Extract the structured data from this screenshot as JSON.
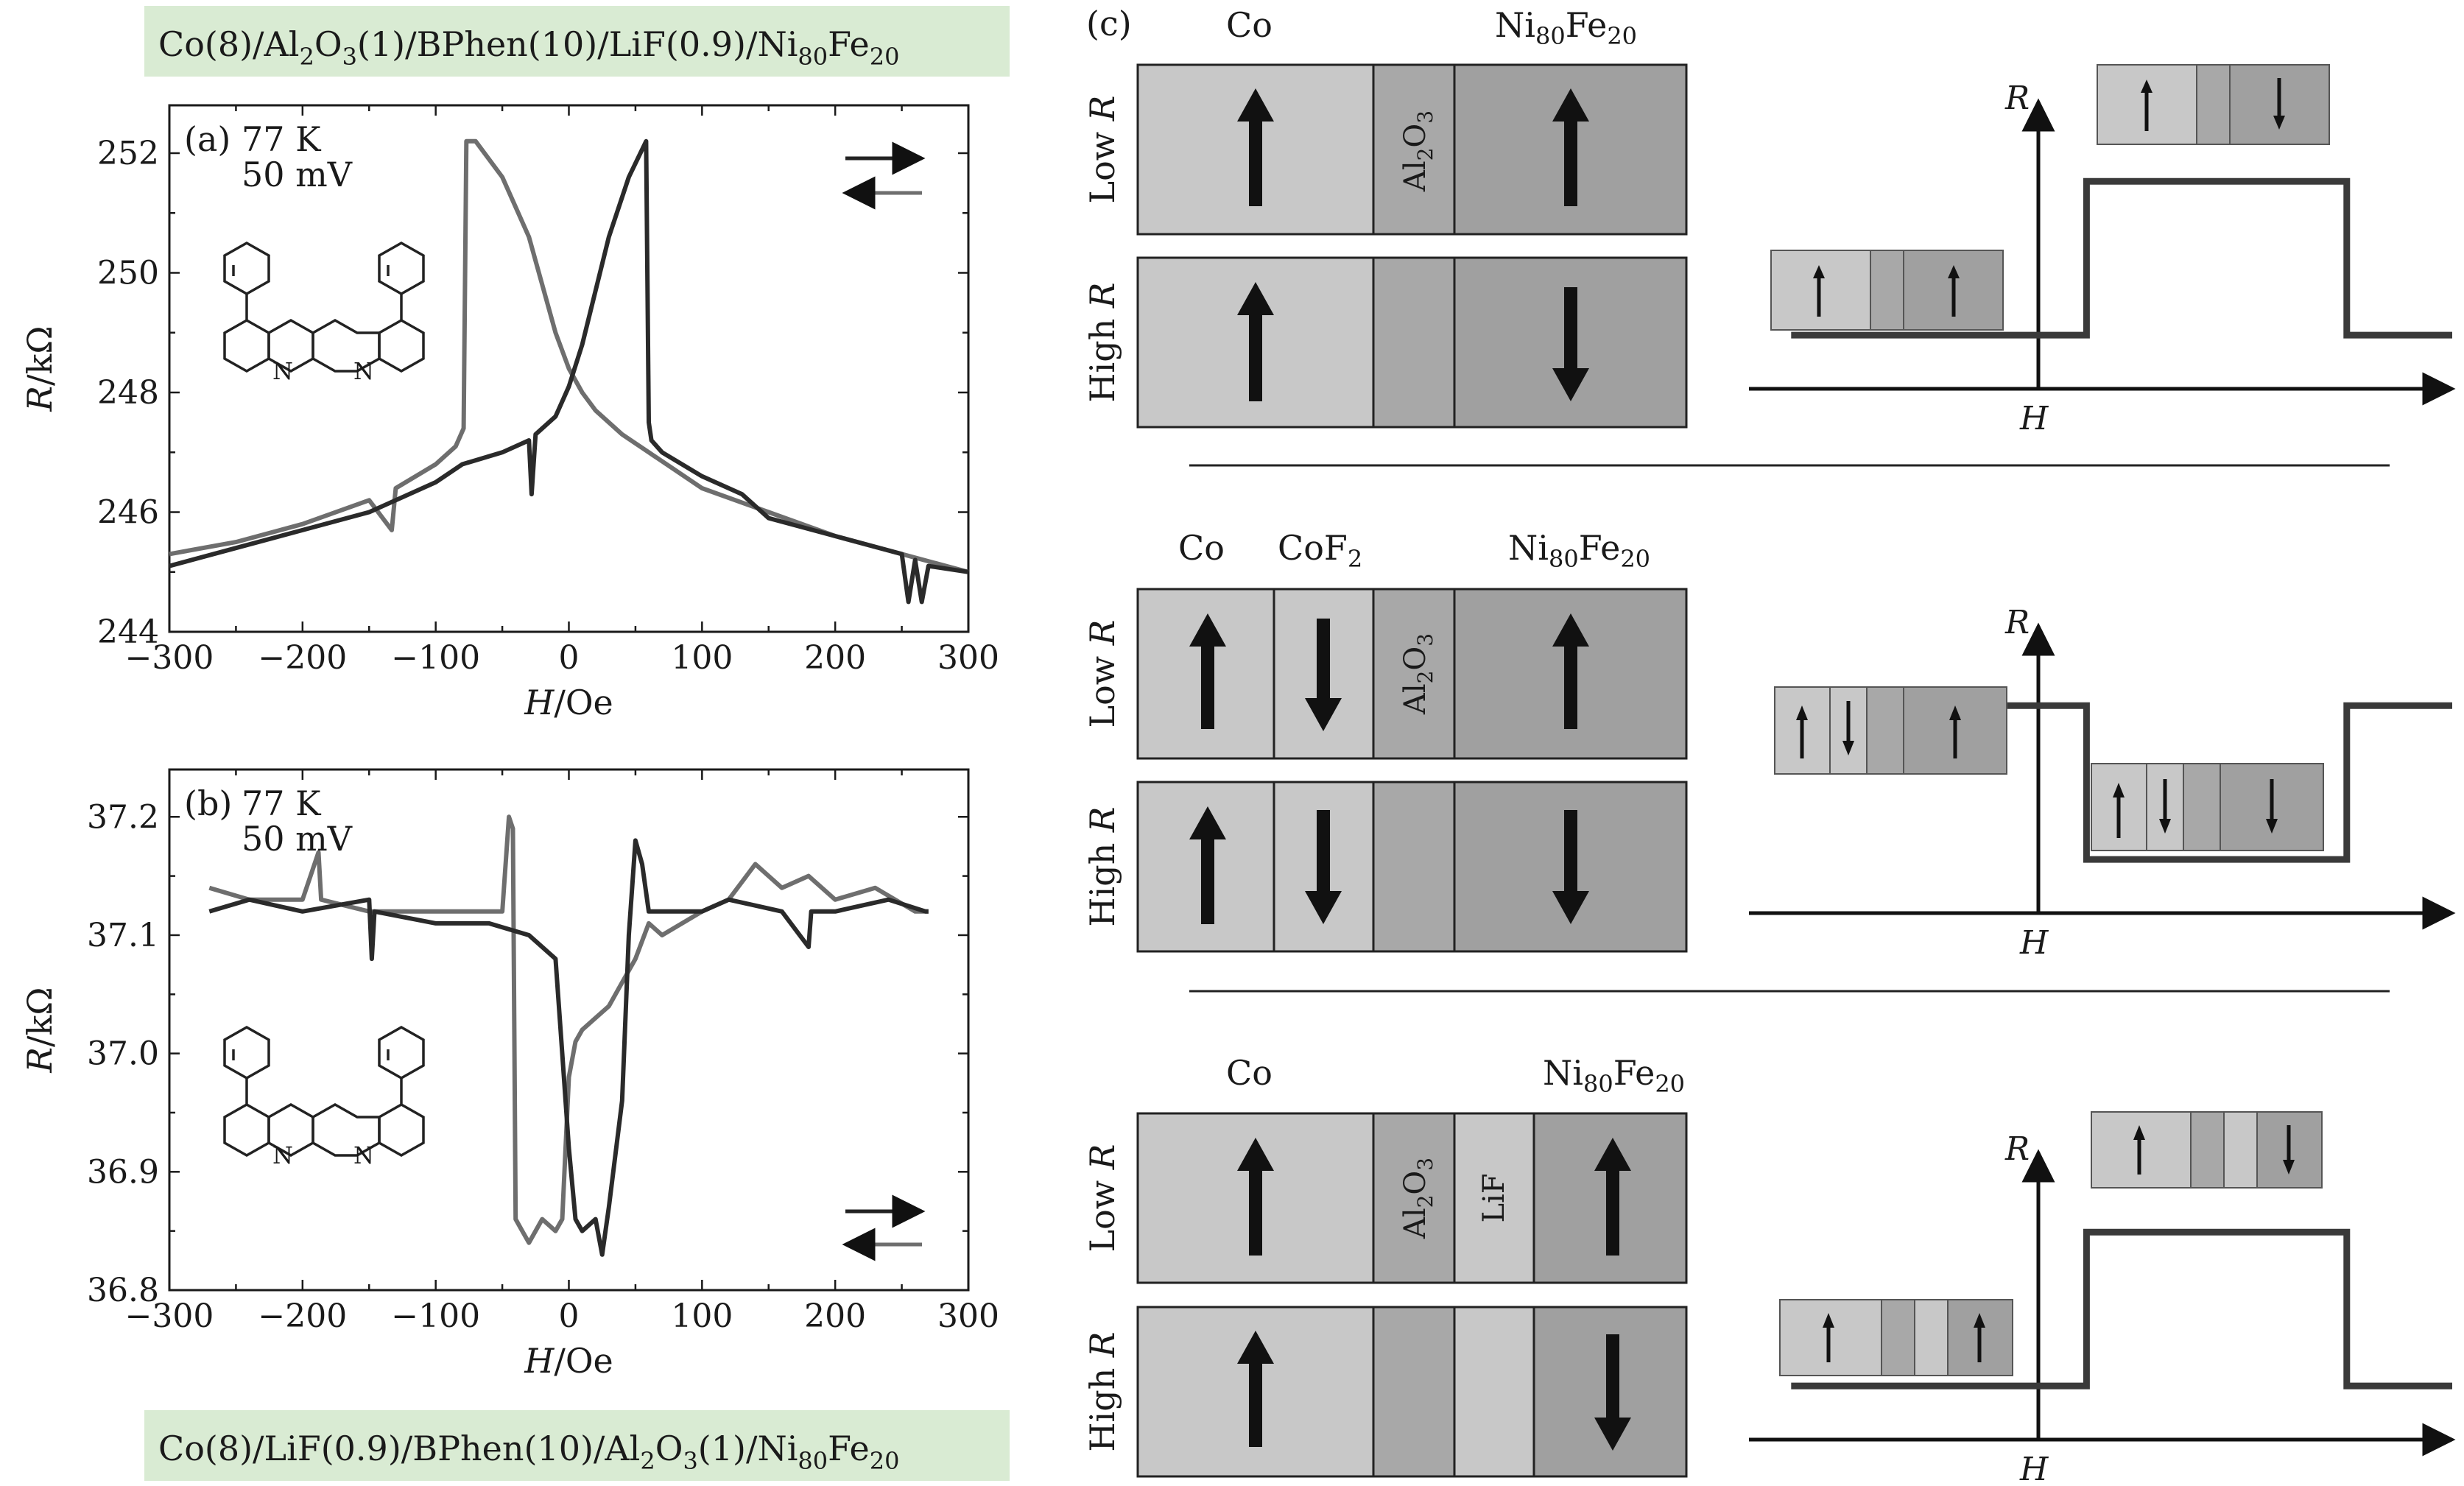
{
  "top_formula_label": {
    "base": "Co(8)/Al",
    "parts": [
      "Co(8)/Al",
      "2",
      "O",
      "3",
      "(1)/BPhen(10)/LiF(0.9)/Ni",
      "80",
      "Fe",
      "20"
    ]
  },
  "bottom_formula_label": {
    "parts": [
      "Co(8)/LiF(0.9)/BPhen(10)/Al",
      "2",
      "O",
      "3",
      "(1)/Ni",
      "80",
      "Fe",
      "20"
    ]
  },
  "panel_c_label": "(c)",
  "chart_data": [
    {
      "type": "line",
      "panel": "(a)",
      "annotation": [
        "77 K",
        "50 mV"
      ],
      "xlabel": "H/Oe",
      "ylabel": "R/kΩ",
      "xlim": [
        -300,
        300
      ],
      "ylim": [
        244,
        252.8
      ],
      "xticks": [
        -300,
        -200,
        -100,
        0,
        100,
        200,
        300
      ],
      "xtick_labels": [
        "−300",
        "−200",
        "−100",
        "0",
        "100",
        "200",
        "300"
      ],
      "yticks": [
        244,
        246,
        248,
        250,
        252
      ],
      "ytick_labels": [
        "244",
        "246",
        "248",
        "250",
        "252"
      ],
      "colors": {
        "gray": "#6e6e6e",
        "dark": "#2a2a2a"
      },
      "series": [
        {
          "color_key": "gray",
          "x": [
            -300,
            -250,
            -200,
            -150,
            -133,
            -130,
            -100,
            -85,
            -79,
            -77,
            -70,
            -50,
            -30,
            -10,
            0,
            10,
            20,
            40,
            60,
            80,
            100,
            150,
            200,
            250,
            300
          ],
          "y": [
            245.3,
            245.5,
            245.8,
            246.2,
            245.7,
            246.4,
            246.8,
            247.1,
            247.4,
            252.2,
            252.2,
            251.6,
            250.6,
            249.0,
            248.4,
            248.0,
            247.7,
            247.3,
            247.0,
            246.7,
            246.4,
            246.0,
            245.6,
            245.3,
            245.0
          ]
        },
        {
          "color_key": "dark",
          "x": [
            -300,
            -250,
            -200,
            -150,
            -100,
            -80,
            -50,
            -30,
            -28,
            -25,
            -10,
            0,
            10,
            30,
            45,
            58,
            60,
            62,
            70,
            100,
            130,
            150,
            200,
            250,
            255,
            260,
            265,
            270,
            300
          ],
          "y": [
            245.1,
            245.4,
            245.7,
            246.0,
            246.5,
            246.8,
            247.0,
            247.2,
            246.3,
            247.3,
            247.6,
            248.1,
            248.8,
            250.6,
            251.6,
            252.2,
            247.5,
            247.2,
            247.0,
            246.6,
            246.3,
            245.9,
            245.6,
            245.3,
            244.5,
            245.2,
            244.5,
            245.1,
            245.0
          ]
        }
      ]
    },
    {
      "type": "line",
      "panel": "(b)",
      "annotation": [
        "77 K",
        "50 mV"
      ],
      "xlabel": "H/Oe",
      "ylabel": "R/kΩ",
      "xlim": [
        -300,
        300
      ],
      "ylim": [
        36.8,
        37.24
      ],
      "xticks": [
        -300,
        -200,
        -100,
        0,
        100,
        200,
        300
      ],
      "xtick_labels": [
        "−300",
        "−200",
        "−100",
        "0",
        "100",
        "200",
        "300"
      ],
      "yticks": [
        36.8,
        36.9,
        37.0,
        37.1,
        37.2
      ],
      "ytick_labels": [
        "36.8",
        "36.9",
        "37.0",
        "37.1",
        "37.2"
      ],
      "colors": {
        "gray": "#6e6e6e",
        "dark": "#2a2a2a"
      },
      "series": [
        {
          "color_key": "gray",
          "x": [
            -270,
            -240,
            -200,
            -188,
            -186,
            -150,
            -100,
            -60,
            -50,
            -45,
            -42,
            -40,
            -35,
            -30,
            -20,
            -10,
            -5,
            0,
            5,
            10,
            20,
            30,
            40,
            50,
            60,
            70,
            100,
            120,
            140,
            160,
            180,
            200,
            230,
            260,
            270
          ],
          "y": [
            37.14,
            37.13,
            37.13,
            37.17,
            37.13,
            37.12,
            37.12,
            37.12,
            37.12,
            37.2,
            37.19,
            36.86,
            36.85,
            36.84,
            36.86,
            36.85,
            36.86,
            36.98,
            37.01,
            37.02,
            37.03,
            37.04,
            37.06,
            37.08,
            37.11,
            37.1,
            37.12,
            37.13,
            37.16,
            37.14,
            37.15,
            37.13,
            37.14,
            37.12,
            37.12
          ]
        },
        {
          "color_key": "dark",
          "x": [
            -270,
            -240,
            -200,
            -150,
            -148,
            -146,
            -100,
            -60,
            -30,
            -10,
            -5,
            0,
            5,
            10,
            20,
            25,
            30,
            40,
            45,
            50,
            55,
            60,
            80,
            100,
            120,
            160,
            180,
            182,
            200,
            240,
            268,
            270
          ],
          "y": [
            37.12,
            37.13,
            37.12,
            37.13,
            37.08,
            37.12,
            37.11,
            37.11,
            37.1,
            37.08,
            37.0,
            36.92,
            36.86,
            36.85,
            36.86,
            36.83,
            36.87,
            36.96,
            37.1,
            37.18,
            37.16,
            37.12,
            37.12,
            37.12,
            37.13,
            37.12,
            37.09,
            37.12,
            37.12,
            37.13,
            37.12,
            37.12
          ]
        }
      ]
    },
    {
      "type": "line",
      "panel": "(c) top",
      "x_axis_label": "H",
      "y_axis_label": "R",
      "series": [
        {
          "x": [
            0.06,
            0.48,
            0.48,
            0.85,
            0.85,
            1.0
          ],
          "y": [
            0.22,
            0.22,
            0.85,
            0.85,
            0.22,
            0.22
          ]
        }
      ]
    },
    {
      "type": "line",
      "panel": "(c) middle",
      "x_axis_label": "H",
      "y_axis_label": "R",
      "series": [
        {
          "x": [
            0.06,
            0.48,
            0.48,
            0.85,
            0.85,
            1.0
          ],
          "y": [
            0.85,
            0.85,
            0.22,
            0.22,
            0.85,
            0.85
          ]
        }
      ]
    },
    {
      "type": "line",
      "panel": "(c) bottom",
      "x_axis_label": "H",
      "y_axis_label": "R",
      "series": [
        {
          "x": [
            0.06,
            0.48,
            0.48,
            0.85,
            0.85,
            1.0
          ],
          "y": [
            0.22,
            0.22,
            0.85,
            0.85,
            0.22,
            0.22
          ]
        }
      ]
    }
  ],
  "panel_c": {
    "low_r_label": [
      "Low ",
      "R"
    ],
    "high_r_label": [
      "High ",
      "R"
    ],
    "h_label": "H",
    "r_label": "R",
    "top_block": {
      "headers": {
        "co": "Co",
        "ni": [
          "Ni",
          "80",
          "Fe",
          "20"
        ]
      },
      "al2o3": [
        "Al",
        "2",
        "O",
        "3"
      ]
    },
    "middle_block": {
      "headers": {
        "co": "Co",
        "cof": [
          "CoF",
          "2"
        ],
        "ni": [
          "Ni",
          "80",
          "Fe",
          "20"
        ]
      },
      "al2o3": [
        "Al",
        "2",
        "O",
        "3"
      ]
    },
    "bottom_block": {
      "headers": {
        "co": "Co",
        "ni": [
          "Ni",
          "80",
          "Fe",
          "20"
        ]
      },
      "al2o3": [
        "Al",
        "2",
        "O",
        "3"
      ],
      "lif": "LiF"
    }
  }
}
